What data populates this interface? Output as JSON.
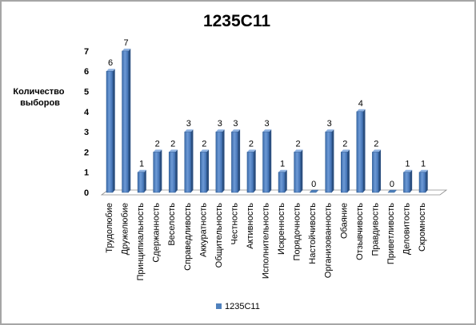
{
  "chart_data": {
    "type": "bar",
    "title": "1235С11",
    "ylabel": "Количество выборов",
    "xlabel": "",
    "ylim": [
      0,
      7
    ],
    "yticks": [
      0,
      1,
      2,
      3,
      4,
      5,
      6,
      7
    ],
    "grid": false,
    "legend_position": "bottom",
    "bar_color": "#4f81bd",
    "categories": [
      "Трудолюбие",
      "Дружелюбие",
      "Принципиальность",
      "Сдержанность",
      "Веселость",
      "Справедливость",
      "Аккуратность",
      "Общительность",
      "Честность",
      "Активность",
      "Исполнительность",
      "Искренность",
      "Порядочность",
      "Настойчивость",
      "Организованность",
      "Обаяние",
      "Отзывчивость",
      "Правдивость",
      "Приветливость",
      "Деловитость",
      "Скромность"
    ],
    "series": [
      {
        "name": "1235С11",
        "values": [
          6,
          7,
          1,
          2,
          2,
          3,
          2,
          3,
          3,
          2,
          3,
          1,
          2,
          0,
          3,
          2,
          4,
          2,
          0,
          1,
          1
        ]
      }
    ]
  }
}
